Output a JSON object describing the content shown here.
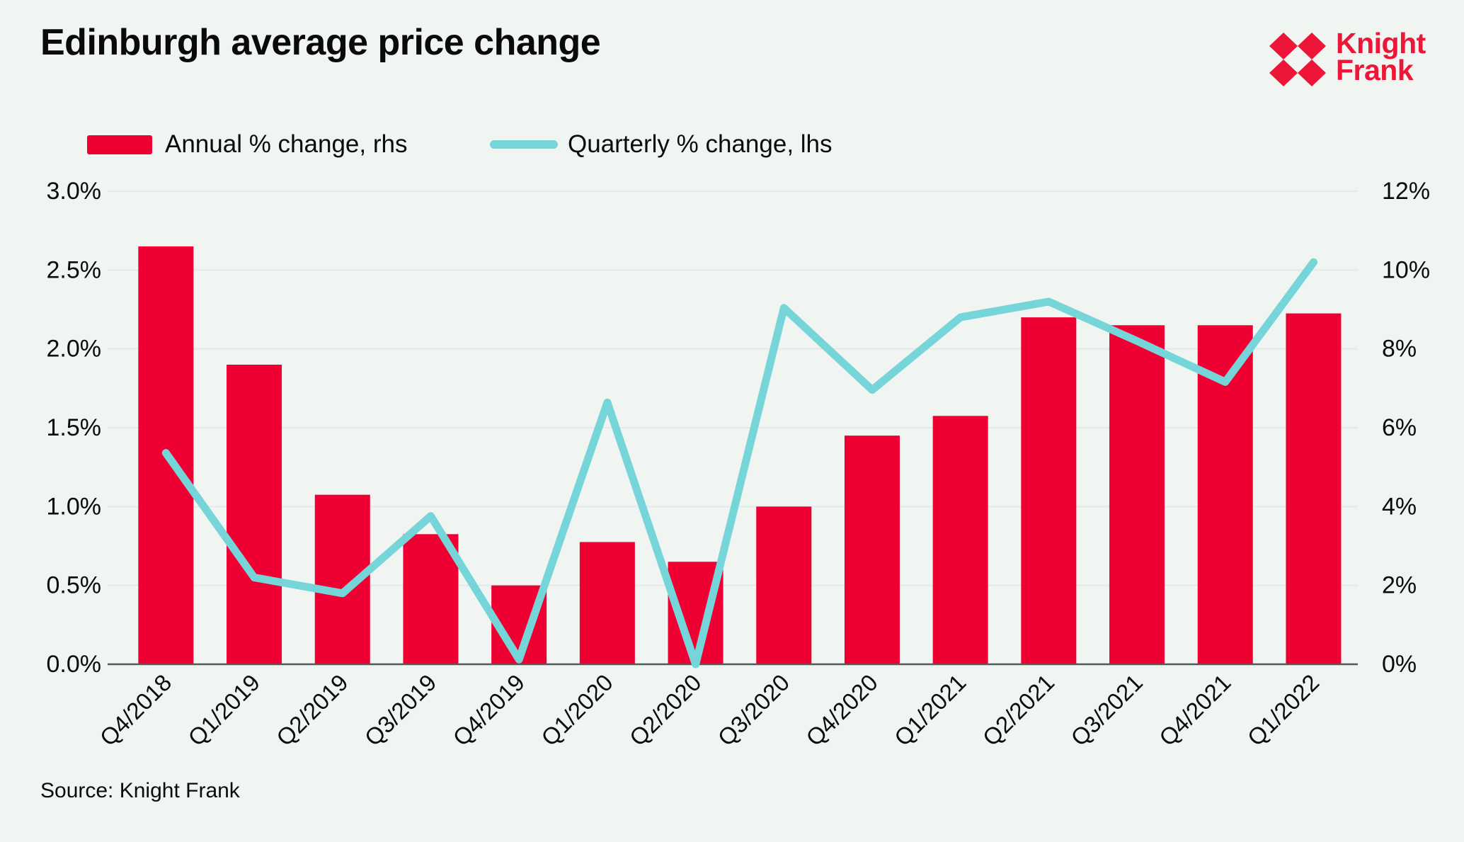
{
  "header": {
    "title": "Edinburgh average price change",
    "logo_line1": "Knight",
    "logo_line2": "Frank"
  },
  "legend": [
    {
      "label": "Annual % change, rhs",
      "swatch": "bar-swatch",
      "color": "#EE0033"
    },
    {
      "label": "Quarterly % change, lhs",
      "swatch": "line-swatch",
      "color": "#76D5D8"
    }
  ],
  "source": "Source: Knight Frank",
  "colors": {
    "background": "#F0F5F2",
    "bar": "#EE0033",
    "line": "#76D5D8",
    "gridline": "#E3E9E7",
    "axis_line": "#4F5B59",
    "logo_red": "#ED1639",
    "text": "#0b0b0b"
  },
  "chart_data": {
    "type": "bar",
    "title": "Edinburgh average price change",
    "xlabel": "",
    "ylabel_left": "Quarterly % change",
    "ylabel_right": "Annual % change",
    "grid": true,
    "legend_position": "top",
    "categories": [
      "Q4/2018",
      "Q1/2019",
      "Q2/2019",
      "Q3/2019",
      "Q4/2019",
      "Q1/2020",
      "Q2/2020",
      "Q3/2020",
      "Q4/2020",
      "Q1/2021",
      "Q2/2021",
      "Q3/2021",
      "Q4/2021",
      "Q1/2022"
    ],
    "series": [
      {
        "name": "Annual % change, rhs",
        "type": "bar",
        "axis": "right",
        "values": [
          10.6,
          7.6,
          4.3,
          3.3,
          2.0,
          3.1,
          2.6,
          4.0,
          5.8,
          6.3,
          8.8,
          8.6,
          8.6,
          8.9
        ]
      },
      {
        "name": "Quarterly % change, lhs",
        "type": "line",
        "axis": "left",
        "values": [
          1.34,
          0.55,
          0.45,
          0.94,
          0.03,
          1.66,
          0.0,
          2.26,
          1.74,
          2.2,
          2.3,
          2.05,
          1.79,
          2.55
        ]
      }
    ],
    "left_axis": {
      "min": 0,
      "max": 3,
      "ticks": [
        "0.0%",
        "0.5%",
        "1.0%",
        "1.5%",
        "2.0%",
        "2.5%",
        "3.0%"
      ]
    },
    "right_axis": {
      "min": 0,
      "max": 12,
      "ticks": [
        "0%",
        "2%",
        "4%",
        "6%",
        "8%",
        "10%",
        "12%"
      ]
    }
  }
}
